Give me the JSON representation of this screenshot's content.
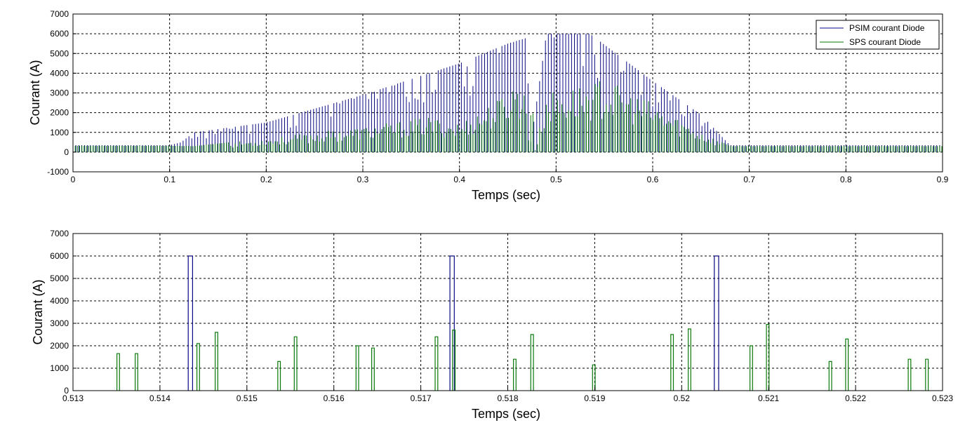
{
  "colors": {
    "psim": "#0a0a82",
    "sps": "#0a7a0a",
    "grid": "#000000",
    "background": "#ffffff"
  },
  "chart_data": [
    {
      "type": "line",
      "xlabel": "Temps (sec)",
      "ylabel": "Courant (A)",
      "xlim": [
        0,
        0.9
      ],
      "ylim": [
        -1000,
        7000
      ],
      "xticks": [
        "0",
        "0.1",
        "0.2",
        "0.3",
        "0.4",
        "0.5",
        "0.6",
        "0.7",
        "0.8",
        "0.9"
      ],
      "yticks": [
        "-1000",
        "0",
        "1000",
        "2000",
        "3000",
        "4000",
        "5000",
        "6000",
        "7000"
      ],
      "grid": true,
      "legend": {
        "position": "top-right",
        "entries": [
          "PSIM courant Diode",
          "SPS courant Diode"
        ]
      },
      "series": [
        {
          "name": "PSIM courant Diode",
          "kind": "pulse-envelope",
          "pulse_spacing": 0.003,
          "envelope_x": [
            0,
            0.1,
            0.112,
            0.125,
            0.2,
            0.3,
            0.4,
            0.45,
            0.47,
            0.4725,
            0.49,
            0.535,
            0.6,
            0.65,
            0.68,
            0.9
          ],
          "envelope_y": [
            350,
            350,
            500,
            1000,
            1500,
            2900,
            4500,
            5500,
            5800,
            0,
            6000,
            6000,
            3600,
            1900,
            350,
            350
          ]
        },
        {
          "name": "SPS courant Diode",
          "kind": "pulse-envelope",
          "pulse_spacing": 0.0023,
          "envelope_x": [
            0,
            0.1,
            0.125,
            0.2,
            0.3,
            0.37,
            0.4,
            0.44,
            0.46,
            0.47,
            0.4725,
            0.475,
            0.478,
            0.49,
            0.55,
            0.6,
            0.65,
            0.68,
            0.9
          ],
          "envelope_y": [
            320,
            320,
            300,
            700,
            1300,
            1800,
            1500,
            2700,
            3800,
            2800,
            0,
            4900,
            0,
            3000,
            3700,
            2500,
            1100,
            300,
            300
          ]
        }
      ]
    },
    {
      "type": "line",
      "xlabel": "Temps (sec)",
      "ylabel": "Courant (A)",
      "xlim": [
        0.513,
        0.523
      ],
      "ylim": [
        0,
        7000
      ],
      "xticks": [
        "0.513",
        "0.514",
        "0.515",
        "0.516",
        "0.517",
        "0.518",
        "0.519",
        "0.52",
        "0.521",
        "0.522",
        "0.523"
      ],
      "yticks": [
        "0",
        "1000",
        "2000",
        "3000",
        "4000",
        "5000",
        "6000",
        "7000"
      ],
      "grid": true,
      "series": [
        {
          "name": "PSIM courant Diode",
          "kind": "spikes",
          "x": [
            0.51435,
            0.51736,
            0.5204
          ],
          "y": [
            6000,
            6000,
            6000
          ],
          "width": 5e-05
        },
        {
          "name": "SPS courant Diode",
          "kind": "spikes",
          "x": [
            0.51352,
            0.51373,
            0.51444,
            0.51465,
            0.51537,
            0.51556,
            0.51627,
            0.51645,
            0.51718,
            0.51738,
            0.51808,
            0.51828,
            0.51899,
            0.51989,
            0.52009,
            0.5208,
            0.52099,
            0.52171,
            0.5219,
            0.52262,
            0.52282
          ],
          "y": [
            1650,
            1650,
            2100,
            2600,
            1300,
            2400,
            2000,
            1900,
            2400,
            2700,
            1400,
            2500,
            1150,
            2500,
            2750,
            2000,
            2950,
            1300,
            2300,
            1400,
            1400
          ],
          "width": 3e-05
        }
      ]
    }
  ]
}
